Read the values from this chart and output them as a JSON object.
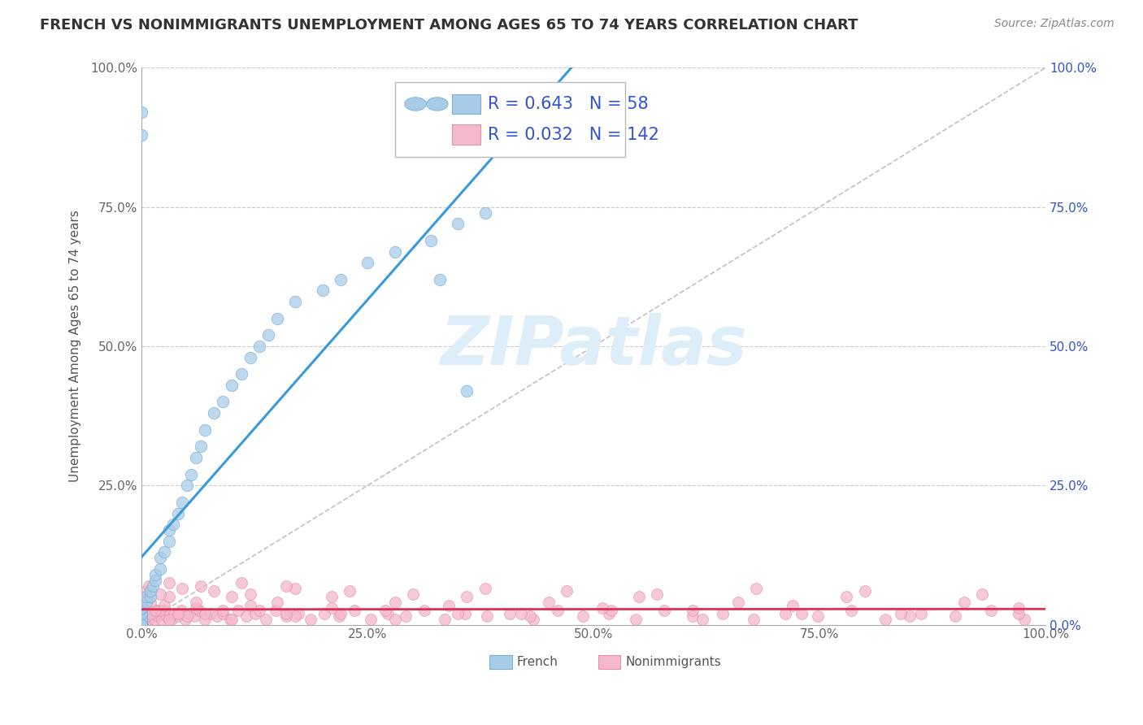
{
  "title": "FRENCH VS NONIMMIGRANTS UNEMPLOYMENT AMONG AGES 65 TO 74 YEARS CORRELATION CHART",
  "source": "Source: ZipAtlas.com",
  "ylabel": "Unemployment Among Ages 65 to 74 years",
  "xlim": [
    0,
    1.0
  ],
  "ylim": [
    0,
    1.0
  ],
  "xticks": [
    0.0,
    0.25,
    0.5,
    0.75,
    1.0
  ],
  "yticks": [
    0.0,
    0.25,
    0.5,
    0.75,
    1.0
  ],
  "xticklabels": [
    "0.0%",
    "25.0%",
    "50.0%",
    "75.0%",
    "100.0%"
  ],
  "yticklabels": [
    "0.0%",
    "25.0%",
    "50.0%",
    "75.0%",
    "100.0%"
  ],
  "french_R": 0.643,
  "french_N": 58,
  "nonimm_R": 0.032,
  "nonimm_N": 142,
  "french_color": "#a8cce8",
  "french_edge_color": "#7aaed4",
  "french_line_color": "#3a9ad8",
  "nonimm_color": "#f4b8cc",
  "nonimm_edge_color": "#e890a8",
  "nonimm_line_color": "#e03050",
  "legend_R_color": "#3355cc",
  "reference_line_color": "#bbbbbb",
  "grid_color": "#cccccc",
  "watermark_color": "#ddeef8",
  "background_color": "#ffffff",
  "title_fontsize": 13,
  "axis_label_fontsize": 11,
  "tick_fontsize": 11,
  "legend_fontsize": 15,
  "source_fontsize": 10,
  "french_x": [
    0.0,
    0.0,
    0.0,
    0.0,
    0.0,
    0.0,
    0.0,
    0.0,
    0.0,
    0.0,
    0.0,
    0.0,
    0.0,
    0.0,
    0.0,
    0.0,
    0.0,
    0.005,
    0.005,
    0.01,
    0.01,
    0.012,
    0.015,
    0.015,
    0.02,
    0.02,
    0.025,
    0.03,
    0.03,
    0.035,
    0.04,
    0.045,
    0.05,
    0.055,
    0.06,
    0.065,
    0.07,
    0.08,
    0.09,
    0.1,
    0.11,
    0.12,
    0.13,
    0.14,
    0.15,
    0.17,
    0.2,
    0.22,
    0.25,
    0.28,
    0.32,
    0.35,
    0.38,
    0.33,
    0.36,
    0.0,
    0.0,
    0.0
  ],
  "french_y": [
    0.0,
    0.0,
    0.0,
    0.0,
    0.0,
    0.0,
    0.0,
    0.0,
    0.0,
    0.0,
    0.01,
    0.01,
    0.02,
    0.02,
    0.03,
    0.03,
    0.04,
    0.04,
    0.05,
    0.05,
    0.06,
    0.07,
    0.08,
    0.09,
    0.1,
    0.12,
    0.13,
    0.15,
    0.17,
    0.18,
    0.2,
    0.22,
    0.25,
    0.27,
    0.3,
    0.32,
    0.35,
    0.38,
    0.4,
    0.43,
    0.45,
    0.48,
    0.5,
    0.52,
    0.55,
    0.58,
    0.6,
    0.62,
    0.65,
    0.67,
    0.69,
    0.72,
    0.74,
    0.62,
    0.42,
    0.92,
    0.88,
    0.0
  ],
  "nonimm_x": [
    0.0,
    0.001,
    0.002,
    0.003,
    0.004,
    0.005,
    0.006,
    0.007,
    0.008,
    0.009,
    0.01,
    0.012,
    0.014,
    0.016,
    0.018,
    0.02,
    0.022,
    0.025,
    0.028,
    0.03,
    0.033,
    0.036,
    0.04,
    0.044,
    0.048,
    0.053,
    0.058,
    0.064,
    0.07,
    0.076,
    0.083,
    0.09,
    0.098,
    0.107,
    0.116,
    0.126,
    0.137,
    0.148,
    0.16,
    0.173,
    0.187,
    0.202,
    0.218,
    0.235,
    0.253,
    0.272,
    0.292,
    0.313,
    0.335,
    0.358,
    0.382,
    0.407,
    0.433,
    0.46,
    0.488,
    0.517,
    0.547,
    0.578,
    0.61,
    0.643,
    0.677,
    0.712,
    0.748,
    0.785,
    0.823,
    0.862,
    0.9,
    0.94,
    0.977,
    0.0,
    0.005,
    0.01,
    0.02,
    0.03,
    0.05,
    0.07,
    0.1,
    0.13,
    0.17,
    0.22,
    0.28,
    0.35,
    0.43,
    0.52,
    0.62,
    0.73,
    0.85,
    0.97,
    0.0,
    0.0,
    0.015,
    0.025,
    0.04,
    0.06,
    0.09,
    0.12,
    0.16,
    0.21,
    0.27,
    0.34,
    0.42,
    0.51,
    0.61,
    0.72,
    0.84,
    0.97,
    0.0,
    0.01,
    0.03,
    0.06,
    0.1,
    0.15,
    0.21,
    0.28,
    0.36,
    0.45,
    0.55,
    0.66,
    0.78,
    0.91,
    0.005,
    0.02,
    0.045,
    0.08,
    0.12,
    0.17,
    0.23,
    0.3,
    0.38,
    0.47,
    0.57,
    0.68,
    0.8,
    0.93,
    0.008,
    0.03,
    0.065,
    0.11,
    0.16
  ],
  "nonimm_y": [
    0.02,
    0.01,
    0.02,
    0.01,
    0.015,
    0.02,
    0.01,
    0.025,
    0.01,
    0.02,
    0.015,
    0.02,
    0.01,
    0.025,
    0.015,
    0.02,
    0.01,
    0.025,
    0.015,
    0.02,
    0.01,
    0.02,
    0.015,
    0.025,
    0.01,
    0.02,
    0.015,
    0.025,
    0.01,
    0.02,
    0.015,
    0.02,
    0.01,
    0.025,
    0.015,
    0.02,
    0.01,
    0.025,
    0.015,
    0.02,
    0.01,
    0.02,
    0.015,
    0.025,
    0.01,
    0.02,
    0.015,
    0.025,
    0.01,
    0.02,
    0.015,
    0.02,
    0.01,
    0.025,
    0.015,
    0.02,
    0.01,
    0.025,
    0.015,
    0.02,
    0.01,
    0.02,
    0.015,
    0.025,
    0.01,
    0.02,
    0.015,
    0.025,
    0.01,
    0.02,
    0.015,
    0.02,
    0.025,
    0.01,
    0.015,
    0.02,
    0.01,
    0.025,
    0.015,
    0.02,
    0.01,
    0.02,
    0.015,
    0.025,
    0.01,
    0.02,
    0.015,
    0.02,
    0.03,
    0.04,
    0.025,
    0.035,
    0.02,
    0.03,
    0.025,
    0.035,
    0.02,
    0.03,
    0.025,
    0.035,
    0.02,
    0.03,
    0.025,
    0.035,
    0.02,
    0.03,
    0.05,
    0.04,
    0.05,
    0.04,
    0.05,
    0.04,
    0.05,
    0.04,
    0.05,
    0.04,
    0.05,
    0.04,
    0.05,
    0.04,
    0.06,
    0.055,
    0.065,
    0.06,
    0.055,
    0.065,
    0.06,
    0.055,
    0.065,
    0.06,
    0.055,
    0.065,
    0.06,
    0.055,
    0.07,
    0.075,
    0.07,
    0.075,
    0.07
  ]
}
